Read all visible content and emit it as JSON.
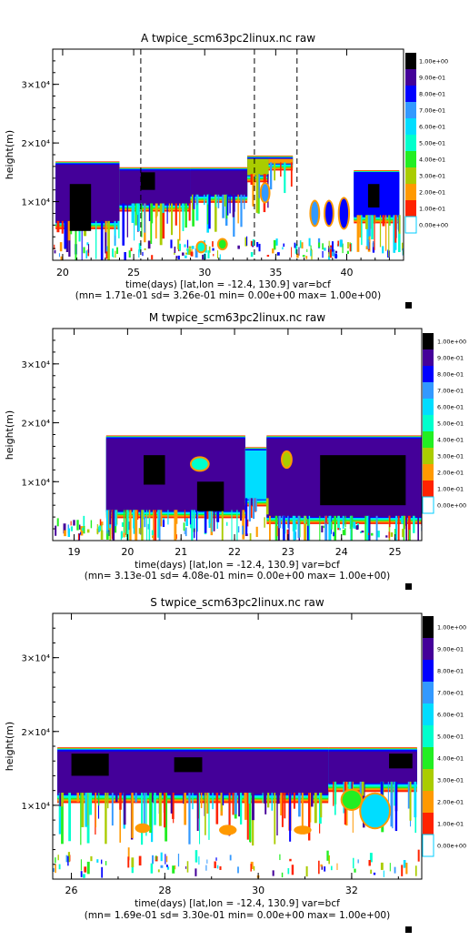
{
  "colors": {
    "scale": [
      "#ffffff",
      "#ff2200",
      "#ff9900",
      "#aacc00",
      "#22ee22",
      "#00ffcc",
      "#00ddff",
      "#3399ff",
      "#0000ff",
      "#440099",
      "#000000"
    ]
  },
  "chart_data": [
    {
      "type": "heatmap",
      "title": "A twpice_scm63pc2linux.nc raw",
      "ylabel": "height(m)",
      "xlabel": "time(days) [lat,lon = -12.4, 130.9] var=bcf",
      "stats": "(mn= 1.71e-01 sd= 3.26e-01 min= 0.00e+00 max= 1.00e+00)",
      "xlim": [
        19.3,
        44.0
      ],
      "ylim": [
        0,
        36000
      ],
      "x_ticks": [
        20,
        25,
        30,
        35,
        40
      ],
      "y_ticks": [
        {
          "value": 10000,
          "label": "1×10⁴"
        },
        {
          "value": 20000,
          "label": "2×10⁴"
        },
        {
          "value": 30000,
          "label": "3×10⁴"
        }
      ],
      "vlines": [
        25.5,
        33.5,
        36.5
      ],
      "legend_labels": [
        "1.00e+00",
        "9.00e-01",
        "8.00e-01",
        "7.00e-01",
        "6.00e-01",
        "5.00e-01",
        "4.00e-01",
        "3.00e-01",
        "2.00e-01",
        "1.00e-01",
        "0.00e+00"
      ],
      "cloud": [
        {
          "x": [
            19.5,
            24.0
          ],
          "top": 16500,
          "base": 6500,
          "v": 0.9
        },
        {
          "x": [
            24.0,
            29.0
          ],
          "top": 15500,
          "base": 9500,
          "v": 0.9
        },
        {
          "x": [
            29.0,
            33.0
          ],
          "top": 15500,
          "base": 11000,
          "v": 0.9
        },
        {
          "x": [
            33.0,
            34.5
          ],
          "top": 17500,
          "base": 14500,
          "v": 0.3
        },
        {
          "x": [
            34.5,
            36.2
          ],
          "top": 17500,
          "base": 16500,
          "v": 0.2
        },
        {
          "x": [
            40.5,
            43.7
          ],
          "top": 15000,
          "base": 7500,
          "v": 0.8
        }
      ],
      "spots": [
        {
          "x": 37.5,
          "y": 6000,
          "w": 0.5,
          "h": 4000,
          "v": 0.7
        },
        {
          "x": 38.5,
          "y": 6000,
          "w": 0.5,
          "h": 4000,
          "v": 0.8
        },
        {
          "x": 39.5,
          "y": 5500,
          "w": 0.6,
          "h": 5000,
          "v": 0.8
        },
        {
          "x": 34.0,
          "y": 10000,
          "w": 0.5,
          "h": 3000,
          "v": 0.7
        },
        {
          "x": 29.5,
          "y": 1500,
          "w": 0.5,
          "h": 1500,
          "v": 0.5
        },
        {
          "x": 31.0,
          "y": 2000,
          "w": 0.5,
          "h": 1500,
          "v": 0.4
        }
      ],
      "dark": [
        {
          "x": 20.5,
          "y": 5000,
          "w": 1.5,
          "h": 8000
        },
        {
          "x": 25.5,
          "y": 12000,
          "w": 1.0,
          "h": 3000
        },
        {
          "x": 41.5,
          "y": 9000,
          "w": 0.8,
          "h": 4000
        }
      ]
    },
    {
      "type": "heatmap",
      "title": "M twpice_scm63pc2linux.nc raw",
      "ylabel": "height(m)",
      "xlabel": "time(days) [lat,lon = -12.4, 130.9] var=bcf",
      "stats": "(mn= 3.13e-01 sd= 4.08e-01 min= 0.00e+00 max= 1.00e+00)",
      "xlim": [
        18.6,
        25.5
      ],
      "ylim": [
        0,
        36000
      ],
      "x_ticks": [
        19,
        20,
        21,
        22,
        23,
        24,
        25
      ],
      "y_ticks": [
        {
          "value": 10000,
          "label": "1×10⁴"
        },
        {
          "value": 20000,
          "label": "2×10⁴"
        },
        {
          "value": 30000,
          "label": "3×10⁴"
        }
      ],
      "vlines": [],
      "legend_labels": [
        "1.00e+00",
        "9.00e-01",
        "8.00e-01",
        "7.00e-01",
        "6.00e-01",
        "5.00e-01",
        "4.00e-01",
        "3.00e-01",
        "2.00e-01",
        "1.00e-01",
        "0.00e+00"
      ],
      "cloud": [
        {
          "x": [
            19.6,
            22.2
          ],
          "top": 17500,
          "base": 5000,
          "v": 0.9
        },
        {
          "x": [
            22.2,
            22.6
          ],
          "top": 15500,
          "base": 7000,
          "v": 0.6
        },
        {
          "x": [
            22.6,
            25.5
          ],
          "top": 17500,
          "base": 4000,
          "v": 0.9
        }
      ],
      "spots": [
        {
          "x": 22.9,
          "y": 12500,
          "w": 0.15,
          "h": 2500,
          "v": 0.3
        },
        {
          "x": 21.2,
          "y": 12000,
          "w": 0.3,
          "h": 2000,
          "v": 0.5
        }
      ],
      "dark": [
        {
          "x": 20.3,
          "y": 9500,
          "w": 0.4,
          "h": 5000
        },
        {
          "x": 21.3,
          "y": 5000,
          "w": 0.5,
          "h": 5000
        },
        {
          "x": 23.6,
          "y": 6000,
          "w": 1.6,
          "h": 8500
        }
      ]
    },
    {
      "type": "heatmap",
      "title": "S twpice_scm63pc2linux.nc raw",
      "ylabel": "height(m)",
      "xlabel": "time(days) [lat,lon = -12.4, 130.9] var=bcf",
      "stats": "(mn= 1.69e-01 sd= 3.30e-01 min= 0.00e+00 max= 1.00e+00)",
      "xlim": [
        25.6,
        33.5
      ],
      "ylim": [
        0,
        36000
      ],
      "x_ticks": [
        26,
        28,
        30,
        32
      ],
      "y_ticks": [
        {
          "value": 10000,
          "label": "1×10⁴"
        },
        {
          "value": 20000,
          "label": "2×10⁴"
        },
        {
          "value": 30000,
          "label": "3×10⁴"
        }
      ],
      "vlines": [],
      "legend_labels": [
        "1.00e+00",
        "9.00e-01",
        "8.00e-01",
        "7.00e-01",
        "6.00e-01",
        "5.00e-01",
        "4.00e-01",
        "3.00e-01",
        "2.00e-01",
        "1.00e-01",
        "0.00e+00"
      ],
      "cloud": [
        {
          "x": [
            25.7,
            31.5
          ],
          "top": 17500,
          "base": 11500,
          "v": 0.9
        },
        {
          "x": [
            31.5,
            33.4
          ],
          "top": 17500,
          "base": 13000,
          "v": 0.9
        }
      ],
      "spots": [
        {
          "x": 32.2,
          "y": 7000,
          "w": 0.6,
          "h": 4500,
          "v": 0.6
        },
        {
          "x": 31.8,
          "y": 9500,
          "w": 0.4,
          "h": 2500,
          "v": 0.4
        },
        {
          "x": 27.4,
          "y": 6500,
          "w": 0.25,
          "h": 800,
          "v": 0.2
        },
        {
          "x": 29.2,
          "y": 6200,
          "w": 0.3,
          "h": 900,
          "v": 0.2
        },
        {
          "x": 30.8,
          "y": 6300,
          "w": 0.3,
          "h": 700,
          "v": 0.2
        }
      ],
      "dark": [
        {
          "x": 26.0,
          "y": 14000,
          "w": 0.8,
          "h": 3000
        },
        {
          "x": 28.2,
          "y": 14500,
          "w": 0.6,
          "h": 2000
        },
        {
          "x": 32.8,
          "y": 15000,
          "w": 0.5,
          "h": 2000
        }
      ]
    }
  ]
}
